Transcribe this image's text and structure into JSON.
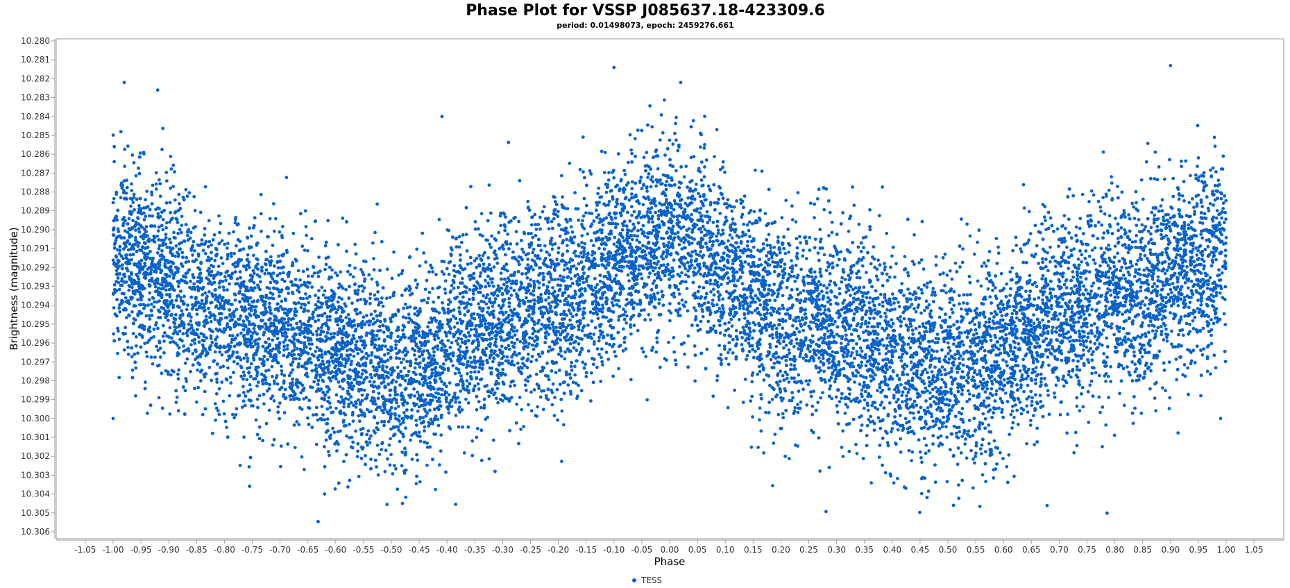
{
  "chart_data": {
    "type": "scatter",
    "title": "Phase Plot for VSSP J085637.18-423309.6",
    "subtitle": "period: 0.01498073, epoch: 2459276.661",
    "xlabel": "Phase",
    "ylabel": "Brightness (magnitude)",
    "xlim": [
      -1.1,
      1.1
    ],
    "ylim": [
      10.306,
      10.28
    ],
    "y_inverted": true,
    "grid": false,
    "legend_placement": "bottom",
    "x_ticks": [
      "-1.05",
      "-1.00",
      "-0.95",
      "-0.90",
      "-0.85",
      "-0.80",
      "-0.75",
      "-0.70",
      "-0.65",
      "-0.60",
      "-0.55",
      "-0.50",
      "-0.45",
      "-0.40",
      "-0.35",
      "-0.30",
      "-0.25",
      "-0.20",
      "-0.15",
      "-0.10",
      "-0.05",
      "0.00",
      "0.05",
      "0.10",
      "0.15",
      "0.20",
      "0.25",
      "0.30",
      "0.35",
      "0.40",
      "0.45",
      "0.50",
      "0.55",
      "0.60",
      "0.65",
      "0.70",
      "0.75",
      "0.80",
      "0.85",
      "0.90",
      "0.95",
      "1.00",
      "1.05"
    ],
    "y_ticks": [
      "10.280",
      "10.281",
      "10.282",
      "10.283",
      "10.284",
      "10.285",
      "10.286",
      "10.287",
      "10.288",
      "10.289",
      "10.290",
      "10.291",
      "10.292",
      "10.293",
      "10.294",
      "10.295",
      "10.296",
      "10.297",
      "10.298",
      "10.299",
      "10.300",
      "10.301",
      "10.302",
      "10.303",
      "10.304",
      "10.305",
      "10.306"
    ],
    "series": [
      {
        "name": "TESS",
        "color": "#0a63c9",
        "shape": "circle",
        "x_range": [
          -1.0,
          1.0
        ],
        "curve": "sinusoidal, maxima near phase -1.0, 0.0 and 1.0, minima near phase -0.5 and 0.5",
        "x_knots": [
          -1.0,
          -0.75,
          -0.5,
          -0.25,
          0.0,
          0.25,
          0.5,
          0.75,
          1.0
        ],
        "y_mean": [
          10.2915,
          10.295,
          10.2975,
          10.294,
          10.2905,
          10.295,
          10.2975,
          10.294,
          10.2915
        ],
        "y_scatter_sd": 0.0026,
        "n_points_approx": 14000,
        "outliers": [
          {
            "x": -1.0,
            "y": 10.3
          },
          {
            "x": -0.98,
            "y": 10.2822
          },
          {
            "x": -0.92,
            "y": 10.2826
          },
          {
            "x": -0.62,
            "y": 10.304
          },
          {
            "x": -0.48,
            "y": 10.3045
          },
          {
            "x": -0.1,
            "y": 10.2814
          },
          {
            "x": 0.02,
            "y": 10.2822
          },
          {
            "x": 0.51,
            "y": 10.3046
          },
          {
            "x": 0.9,
            "y": 10.2813
          },
          {
            "x": 0.99,
            "y": 10.3
          }
        ]
      }
    ]
  }
}
